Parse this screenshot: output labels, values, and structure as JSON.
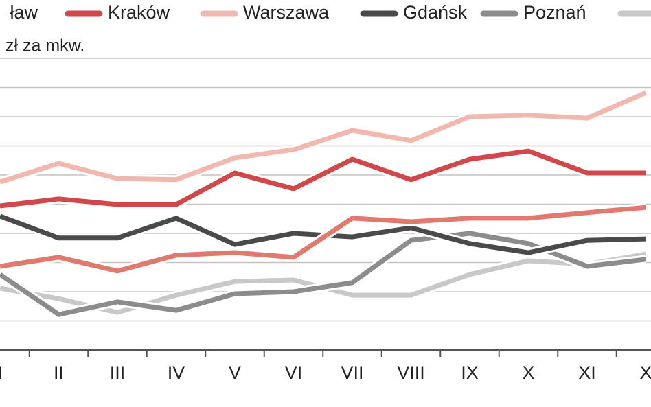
{
  "chart_data": {
    "type": "line",
    "subtitle": "zł za mkw.",
    "categories": [
      "I",
      "II",
      "III",
      "IV",
      "V",
      "VI",
      "VII",
      "VIII",
      "IX",
      "X",
      "XI",
      "X"
    ],
    "ylim": [
      0,
      10
    ],
    "yticks": [
      0,
      1,
      2,
      3,
      4,
      5,
      6,
      7,
      8,
      9,
      10
    ],
    "grid": true,
    "series": [
      {
        "name": "ław",
        "color": "#e07a6e",
        "values": [
          2.87,
          3.18,
          2.71,
          3.25,
          3.34,
          3.18,
          4.52,
          4.4,
          4.52,
          4.52,
          4.71,
          4.89
        ]
      },
      {
        "name": "Kraków",
        "color": "#d0484a",
        "values": [
          4.94,
          5.18,
          4.99,
          4.99,
          6.07,
          5.53,
          6.54,
          5.84,
          6.54,
          6.82,
          6.07,
          6.07
        ]
      },
      {
        "name": "Warszawa",
        "color": "#f0b8ae",
        "values": [
          5.76,
          6.4,
          5.88,
          5.84,
          6.59,
          6.87,
          7.53,
          7.18,
          8.0,
          8.05,
          7.95,
          8.82
        ]
      },
      {
        "name": "Gdańsk",
        "color": "#4a4a4a",
        "values": [
          4.59,
          3.84,
          3.84,
          4.52,
          3.62,
          4.0,
          3.88,
          4.19,
          3.65,
          3.34,
          3.76,
          3.81
        ]
      },
      {
        "name": "Poznań",
        "color": "#8c8c8c",
        "values": [
          2.59,
          1.22,
          1.65,
          1.36,
          1.93,
          2.0,
          2.31,
          3.76,
          4.0,
          3.65,
          2.87,
          3.11
        ]
      },
      {
        "name": null,
        "color": "#c8c8c8",
        "values": [
          2.12,
          1.76,
          1.29,
          1.88,
          2.35,
          2.4,
          1.88,
          1.88,
          2.59,
          3.06,
          2.94,
          3.29
        ]
      }
    ]
  }
}
